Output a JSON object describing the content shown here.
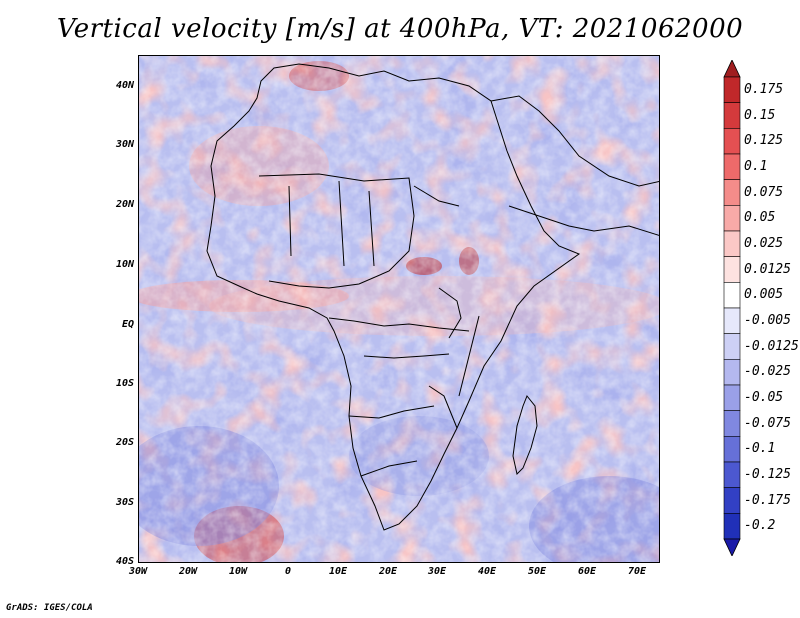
{
  "title": "Vertical velocity [m/s] at 400hPa, VT: 2021062000",
  "credit": "GrADS: IGES/COLA",
  "map": {
    "lat_labels": [
      "40N",
      "30N",
      "20N",
      "10N",
      "EQ",
      "10S",
      "20S",
      "30S",
      "40S"
    ],
    "lon_labels": [
      "30W",
      "20W",
      "10W",
      "0",
      "10E",
      "20E",
      "30E",
      "40E",
      "50E",
      "60E",
      "70E"
    ],
    "lat_range": [
      -40,
      45
    ],
    "lon_range": [
      -30,
      75
    ]
  },
  "colorbar": {
    "labels": [
      "0.175",
      "0.15",
      "0.125",
      "0.1",
      "0.075",
      "0.05",
      "0.025",
      "0.0125",
      "0.005",
      "-0.005",
      "-0.0125",
      "-0.025",
      "-0.05",
      "-0.075",
      "-0.1",
      "-0.125",
      "-0.175",
      "-0.2"
    ],
    "colors": [
      "#c0282a",
      "#d43a3c",
      "#e45052",
      "#ee6a6a",
      "#f48c8a",
      "#f8aaa8",
      "#fbc8c6",
      "#fde2e0",
      "#ffffff",
      "#e6e8fb",
      "#cdd0f5",
      "#b4b8ef",
      "#9aa0e8",
      "#8088e0",
      "#6670d8",
      "#4c58d0",
      "#3240c4",
      "#2030b8"
    ],
    "top_arrow_color": "#a01e20",
    "bottom_arrow_color": "#1a1aa8"
  }
}
